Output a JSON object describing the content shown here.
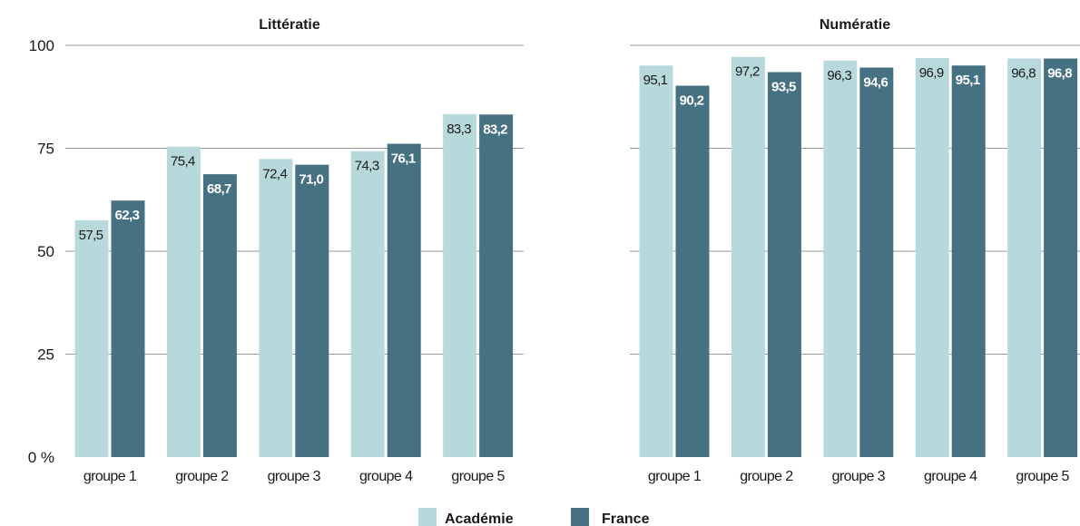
{
  "chart_data": [
    {
      "type": "bar",
      "title": "Littératie",
      "categories": [
        "groupe 1",
        "groupe 2",
        "groupe 3",
        "groupe 4",
        "groupe 5"
      ],
      "series": [
        {
          "name": "Académie",
          "values": [
            57.5,
            75.4,
            72.4,
            74.3,
            83.3
          ],
          "labels": [
            "57,5",
            "75,4",
            "72,4",
            "74,3",
            "83,3"
          ]
        },
        {
          "name": "France",
          "values": [
            62.3,
            68.7,
            71.0,
            76.1,
            83.2
          ],
          "labels": [
            "62,3",
            "68,7",
            "71,0",
            "76,1",
            "83,2"
          ]
        }
      ],
      "ylim": [
        0,
        100
      ],
      "yticks": [
        0,
        25,
        50,
        75,
        100
      ],
      "ytick_labels": [
        "0 %",
        "25",
        "50",
        "75",
        "100"
      ],
      "grid": true
    },
    {
      "type": "bar",
      "title": "Numératie",
      "categories": [
        "groupe 1",
        "groupe 2",
        "groupe 3",
        "groupe 4",
        "groupe 5"
      ],
      "series": [
        {
          "name": "Académie",
          "values": [
            95.1,
            97.2,
            96.3,
            96.9,
            96.8
          ],
          "labels": [
            "95,1",
            "97,2",
            "96,3",
            "96,9",
            "96,8"
          ]
        },
        {
          "name": "France",
          "values": [
            90.2,
            93.5,
            94.6,
            95.1,
            96.8
          ],
          "labels": [
            "90,2",
            "93,5",
            "94,6",
            "95,1",
            "96,8"
          ]
        }
      ],
      "ylim": [
        0,
        100
      ],
      "yticks": [
        0,
        25,
        50,
        75,
        100
      ],
      "grid": true
    }
  ],
  "legend": {
    "placement": "bottom",
    "items": [
      {
        "name": "Académie",
        "color": "#b8d9dc"
      },
      {
        "name": "France",
        "color": "#467183"
      }
    ]
  },
  "colors": {
    "academie": "#b8d9dc",
    "france": "#467183"
  }
}
